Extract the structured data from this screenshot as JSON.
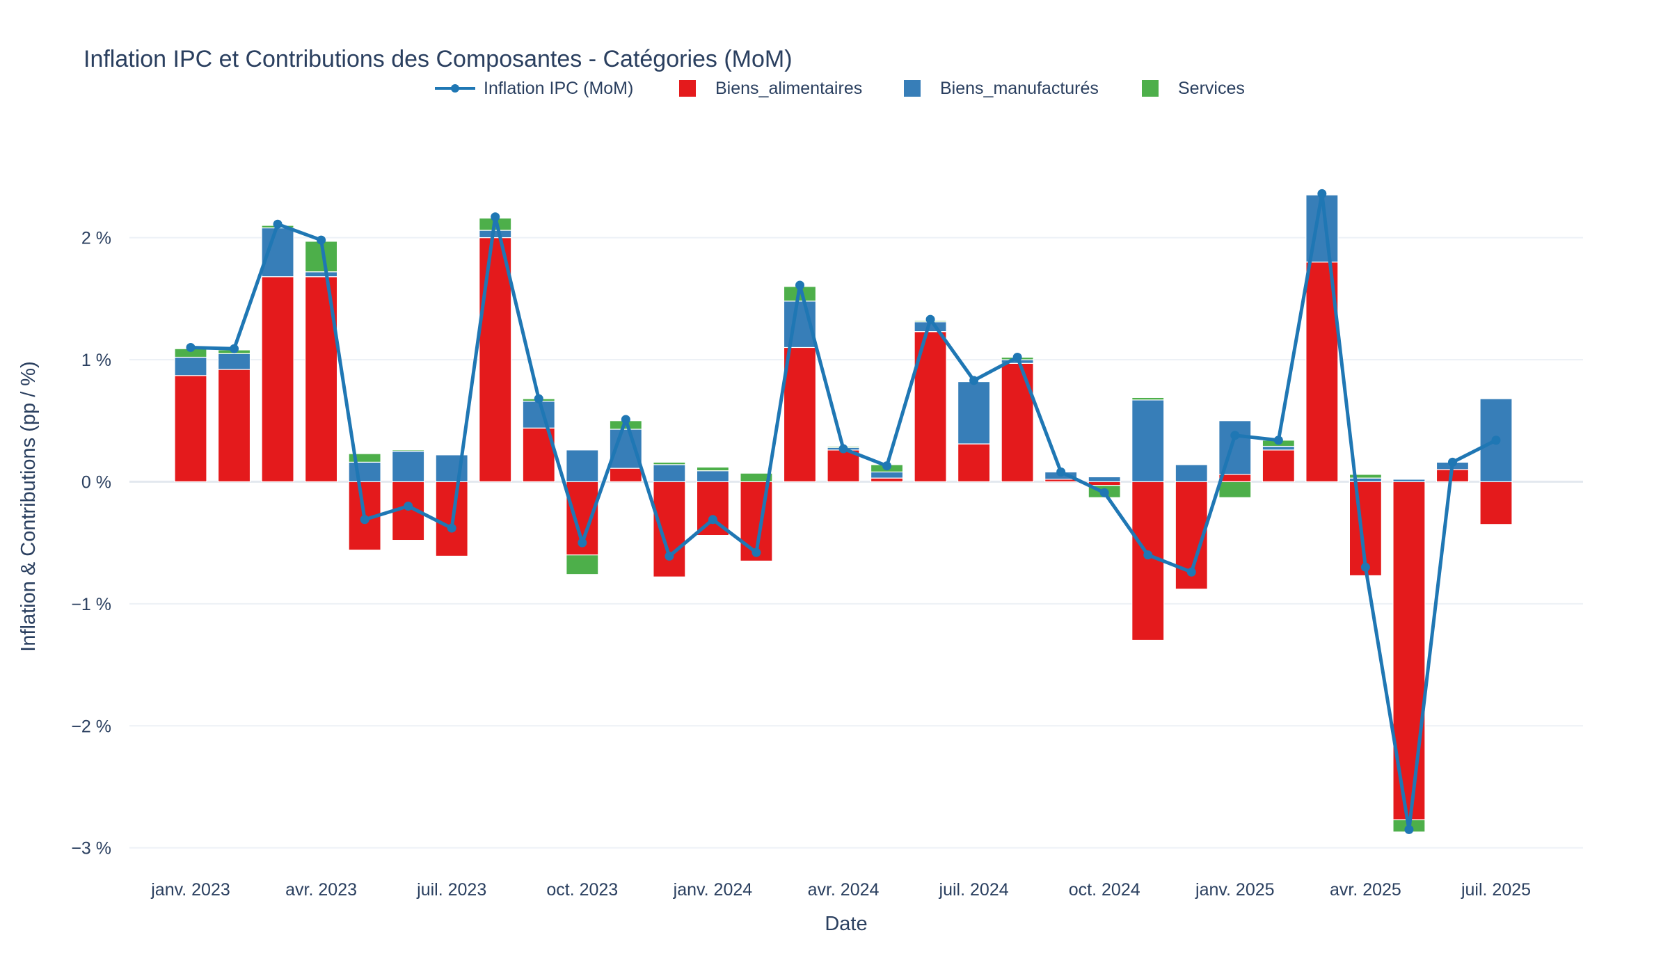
{
  "chart_data": {
    "type": "bar",
    "title": "Inflation IPC et Contributions des Composantes - Catégories (MoM)",
    "xlabel": "Date",
    "ylabel": "Inflation & Contributions (pp / %)",
    "ylim": [
      -3.15,
      2.75
    ],
    "grid": true,
    "legend_position": "top-center",
    "barmode": "relative",
    "categories": [
      "2023-01",
      "2023-02",
      "2023-03",
      "2023-04",
      "2023-05",
      "2023-06",
      "2023-07",
      "2023-08",
      "2023-09",
      "2023-10",
      "2023-11",
      "2023-12",
      "2024-01",
      "2024-02",
      "2024-03",
      "2024-04",
      "2024-05",
      "2024-06",
      "2024-07",
      "2024-08",
      "2024-09",
      "2024-10",
      "2024-11",
      "2024-12",
      "2025-01",
      "2025-02",
      "2025-03",
      "2025-04",
      "2025-05",
      "2025-06",
      "2025-07"
    ],
    "x_tick_labels": [
      "janv. 2023",
      "avr. 2023",
      "juil. 2023",
      "oct. 2023",
      "janv. 2024",
      "avr. 2024",
      "juil. 2024",
      "oct. 2024",
      "janv. 2025",
      "avr. 2025",
      "juil. 2025"
    ],
    "x_tick_index": [
      0,
      3,
      6,
      9,
      12,
      15,
      18,
      21,
      24,
      27,
      30
    ],
    "y_ticks": [
      2,
      1,
      0,
      -1,
      -2,
      -3
    ],
    "y_tick_labels": [
      "2 %",
      "1 %",
      "0 %",
      "−1 %",
      "−2 %",
      "−3 %"
    ],
    "series": [
      {
        "name": "Inflation IPC (MoM)",
        "kind": "line",
        "color": "#1f77b4",
        "values": [
          1.1,
          1.09,
          2.11,
          1.98,
          -0.31,
          -0.2,
          -0.38,
          2.17,
          0.68,
          -0.5,
          0.51,
          -0.61,
          -0.31,
          -0.58,
          1.61,
          0.27,
          0.13,
          1.33,
          0.83,
          1.02,
          0.08,
          -0.09,
          -0.6,
          -0.74,
          0.38,
          0.34,
          2.36,
          -0.7,
          -2.85,
          0.16,
          0.34
        ]
      },
      {
        "name": "Biens_alimentaires",
        "kind": "bar",
        "color": "#e41a1c",
        "values": [
          0.87,
          0.92,
          1.68,
          1.68,
          -0.56,
          -0.48,
          -0.61,
          2.0,
          0.44,
          -0.6,
          0.11,
          -0.78,
          -0.44,
          -0.65,
          1.1,
          0.26,
          0.03,
          1.23,
          0.31,
          0.97,
          0.02,
          -0.03,
          -1.3,
          -0.88,
          0.06,
          0.26,
          1.8,
          -0.77,
          -2.77,
          0.1,
          -0.35
        ]
      },
      {
        "name": "Biens_manufacturés",
        "kind": "bar",
        "color": "#377eb8",
        "values": [
          0.15,
          0.13,
          0.4,
          0.04,
          0.16,
          0.25,
          0.22,
          0.06,
          0.22,
          0.26,
          0.32,
          0.14,
          0.09,
          0.0,
          0.38,
          0.02,
          0.05,
          0.08,
          0.51,
          0.03,
          0.06,
          0.04,
          0.67,
          0.14,
          0.44,
          0.03,
          0.55,
          0.03,
          0.02,
          0.06,
          0.68
        ]
      },
      {
        "name": "Services",
        "kind": "bar",
        "color": "#4daf4a",
        "values": [
          0.07,
          0.03,
          0.02,
          0.25,
          0.07,
          0.01,
          0.0,
          0.1,
          0.02,
          -0.16,
          0.07,
          0.02,
          0.03,
          0.07,
          0.12,
          0.01,
          0.06,
          0.01,
          0.0,
          0.02,
          0.0,
          -0.1,
          0.02,
          0.0,
          -0.13,
          0.05,
          0.0,
          0.03,
          -0.1,
          0.0,
          0.0
        ]
      }
    ]
  }
}
